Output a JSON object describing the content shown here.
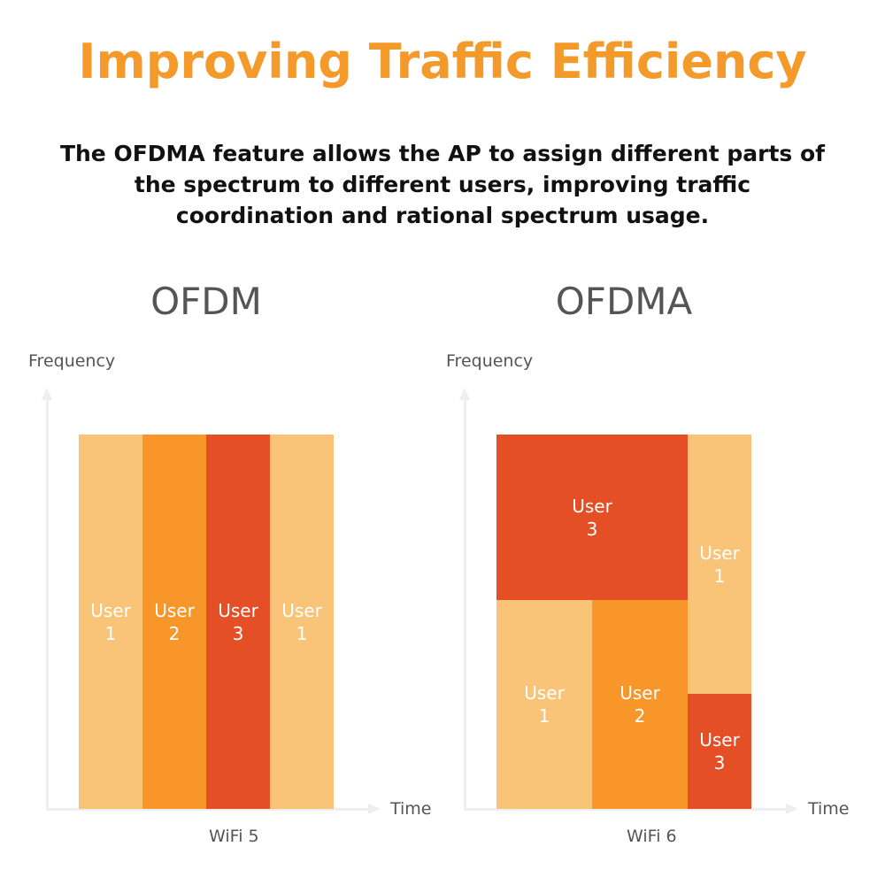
{
  "title": "Improving Traffic Efficiency",
  "subtitle": "The OFDMA feature allows the AP to assign different parts of the spectrum to different users, improving traffic coordination and rational spectrum usage.",
  "colors": {
    "title": "#F39A2B",
    "user1": "#F9C478",
    "user2": "#F8962A",
    "user3": "#E44F26"
  },
  "left": {
    "title": "OFDM",
    "y_label": "Frequency",
    "x_label": "Time",
    "caption": "WiFi 5",
    "blocks": [
      {
        "line1": "User",
        "line2": "1"
      },
      {
        "line1": "User",
        "line2": "2"
      },
      {
        "line1": "User",
        "line2": "3"
      },
      {
        "line1": "User",
        "line2": "1"
      }
    ]
  },
  "right": {
    "title": "OFDMA",
    "y_label": "Frequency",
    "x_label": "Time",
    "caption": "WiFi 6",
    "blocks": [
      {
        "line1": "User",
        "line2": "3"
      },
      {
        "line1": "User",
        "line2": "1"
      },
      {
        "line1": "User",
        "line2": "1"
      },
      {
        "line1": "User",
        "line2": "2"
      },
      {
        "line1": "User",
        "line2": "3"
      }
    ]
  }
}
